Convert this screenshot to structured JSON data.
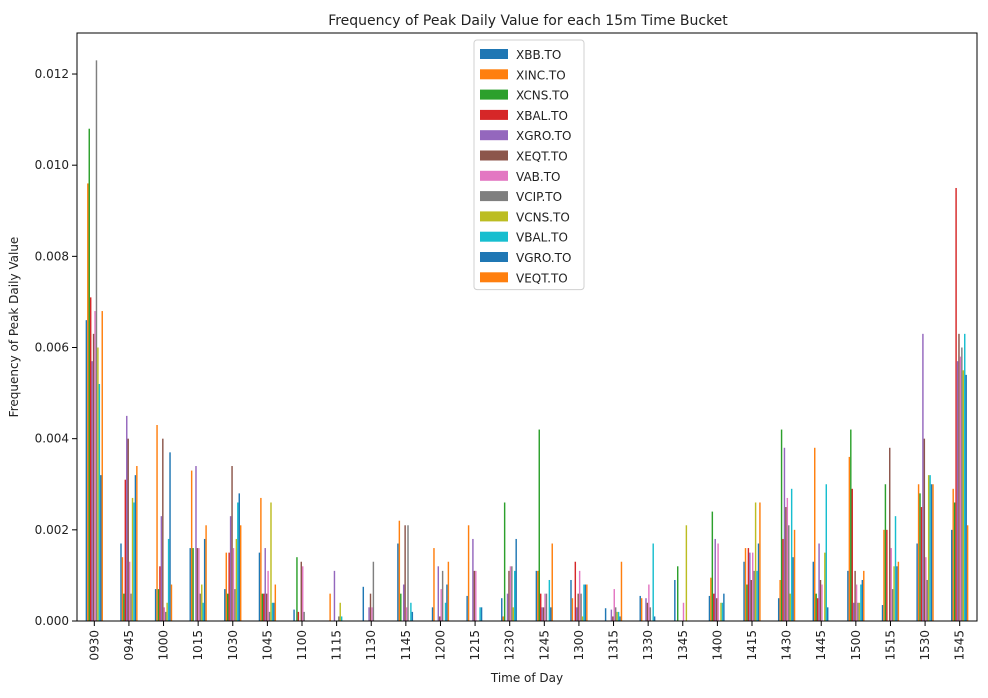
{
  "chart_data": {
    "type": "bar",
    "title": "Frequency of Peak Daily Value for each 15m Time Bucket",
    "xlabel": "Time of Day",
    "ylabel": "Frequency of Peak Daily Value",
    "ylim": [
      0,
      0.0129
    ],
    "yticks": [
      "0.000",
      "0.002",
      "0.004",
      "0.006",
      "0.008",
      "0.010",
      "0.012"
    ],
    "grid": false,
    "legend_position": "top-center",
    "categories": [
      "0930",
      "0945",
      "1000",
      "1015",
      "1030",
      "1045",
      "1100",
      "1115",
      "1130",
      "1145",
      "1200",
      "1215",
      "1230",
      "1245",
      "1300",
      "1315",
      "1330",
      "1345",
      "1400",
      "1415",
      "1430",
      "1445",
      "1500",
      "1515",
      "1530",
      "1545"
    ],
    "series": [
      {
        "name": "XBB.TO",
        "color": "#1f77b4",
        "values": [
          0.0066,
          0.0017,
          0.0007,
          0.0016,
          0.0007,
          0.0015,
          0.00025,
          0.0,
          0.00075,
          0.0017,
          0.0003,
          0.00055,
          0.0005,
          0.0011,
          0.0009,
          0.00028,
          0.00055,
          0.0009,
          0.00055,
          0.0013,
          0.0005,
          0.0013,
          0.0011,
          0.00035,
          0.0017,
          0.002
        ]
      },
      {
        "name": "XINC.TO",
        "color": "#ff7f0e",
        "values": [
          0.0096,
          0.0014,
          0.0043,
          0.0033,
          0.0015,
          0.0027,
          0.0,
          0.0006,
          0.0,
          0.0022,
          0.0016,
          0.0021,
          0.0001,
          0.0011,
          0.0005,
          0.0,
          0.0005,
          0.0,
          0.00095,
          0.0016,
          0.0009,
          0.0038,
          0.0036,
          0.002,
          0.003,
          0.0029
        ]
      },
      {
        "name": "XCNS.TO",
        "color": "#2ca02c",
        "values": [
          0.0108,
          0.0006,
          0.0007,
          0.0016,
          0.0006,
          0.0006,
          0.0014,
          0.0,
          0.0,
          0.0006,
          0.0,
          0.0,
          0.0026,
          0.0042,
          0.0,
          0.0,
          0.0,
          0.0012,
          0.0024,
          0.0008,
          0.0042,
          0.0006,
          0.0042,
          0.003,
          0.0028,
          0.0026
        ]
      },
      {
        "name": "XBAL.TO",
        "color": "#d62728",
        "values": [
          0.0071,
          0.0031,
          0.0012,
          0.0,
          0.0015,
          0.0006,
          0.0002,
          0.0,
          0.0,
          0.0,
          0.0,
          0.0,
          0.0,
          0.0006,
          0.0013,
          0.0,
          0.0,
          0.0,
          0.0006,
          0.0016,
          0.0018,
          0.0005,
          0.0029,
          0.002,
          0.0025,
          0.0095
        ]
      },
      {
        "name": "XGRO.TO",
        "color": "#9467bd",
        "values": [
          0.0057,
          0.0045,
          0.0023,
          0.0034,
          0.0023,
          0.0016,
          0.0,
          0.0011,
          0.0003,
          0.0008,
          0.0012,
          0.0018,
          0.0006,
          0.0003,
          0.0003,
          0.00025,
          0.0005,
          0.0,
          0.0018,
          0.0015,
          0.0038,
          0.0017,
          0.0004,
          0.0,
          0.0063,
          0.0057
        ]
      },
      {
        "name": "XEQT.TO",
        "color": "#8c564b",
        "values": [
          0.0063,
          0.004,
          0.004,
          0.0016,
          0.0034,
          0.0006,
          0.0013,
          0.0,
          0.0006,
          0.0021,
          0.0001,
          0.0011,
          0.0011,
          0.0003,
          0.0006,
          0.0001,
          0.0004,
          0.0,
          0.0005,
          0.0009,
          0.0025,
          0.0009,
          0.0011,
          0.0038,
          0.004,
          0.0063
        ]
      },
      {
        "name": "VAB.TO",
        "color": "#e377c2",
        "values": [
          0.0068,
          0.0013,
          0.0003,
          0.0016,
          0.0016,
          0.0011,
          0.0012,
          0.0,
          0.0003,
          0.0003,
          0.0007,
          0.0011,
          0.0012,
          0.0006,
          0.0011,
          0.0007,
          0.0008,
          0.0004,
          0.0017,
          0.0015,
          0.0027,
          0.0008,
          0.0008,
          0.0016,
          0.0014,
          0.0058
        ]
      },
      {
        "name": "VCIP.TO",
        "color": "#7f7f7f",
        "values": [
          0.0123,
          0.0006,
          0.0002,
          0.0006,
          0.0007,
          0.0002,
          0.0002,
          0.0001,
          0.0013,
          0.0021,
          0.0011,
          0.0,
          0.0012,
          0.0006,
          0.0006,
          0.0003,
          0.0003,
          0.0,
          0.0,
          0.0011,
          0.0021,
          0.0,
          0.0004,
          0.0007,
          0.0009,
          0.006
        ]
      },
      {
        "name": "VCNS.TO",
        "color": "#bcbd22",
        "values": [
          0.006,
          0.0027,
          0.0004,
          0.0008,
          0.0018,
          0.0026,
          0.0,
          0.0004,
          0.0,
          0.0,
          0.0,
          0.0,
          0.0003,
          0.0,
          0.0001,
          0.0002,
          0.0,
          0.0021,
          0.0004,
          0.0026,
          0.0006,
          0.0015,
          0.0004,
          0.0012,
          0.0032,
          0.0055
        ]
      },
      {
        "name": "VBAL.TO",
        "color": "#17becf",
        "values": [
          0.0052,
          0.0026,
          0.0018,
          0.0004,
          0.0026,
          0.0004,
          0.0,
          0.0001,
          0.0,
          0.0004,
          0.0004,
          0.0003,
          0.0011,
          0.0009,
          0.0008,
          0.0002,
          0.0017,
          0.0,
          0.0004,
          0.0011,
          0.0029,
          0.003,
          0.0008,
          0.0023,
          0.0032,
          0.0063
        ]
      },
      {
        "name": "VGRO.TO",
        "color": "#1f77b4",
        "values": [
          0.0032,
          0.0032,
          0.0037,
          0.0018,
          0.0028,
          0.0004,
          0.0,
          0.0,
          0.0,
          0.0002,
          0.0008,
          0.0003,
          0.0018,
          0.0003,
          0.0008,
          0.0001,
          0.0001,
          0.0,
          0.0006,
          0.0017,
          0.0014,
          0.0003,
          0.0009,
          0.0012,
          0.003,
          0.0054
        ]
      },
      {
        "name": "VEQT.TO",
        "color": "#ff7f0e",
        "values": [
          0.0068,
          0.0034,
          0.0008,
          0.0021,
          0.0021,
          0.0008,
          0.0,
          0.0,
          0.0,
          0.0,
          0.0013,
          0.0,
          0.0,
          0.0017,
          0.0008,
          0.0013,
          0.0,
          0.0,
          0.0,
          0.0026,
          0.002,
          0.0,
          0.0011,
          0.0013,
          0.003,
          0.0021
        ]
      }
    ]
  }
}
